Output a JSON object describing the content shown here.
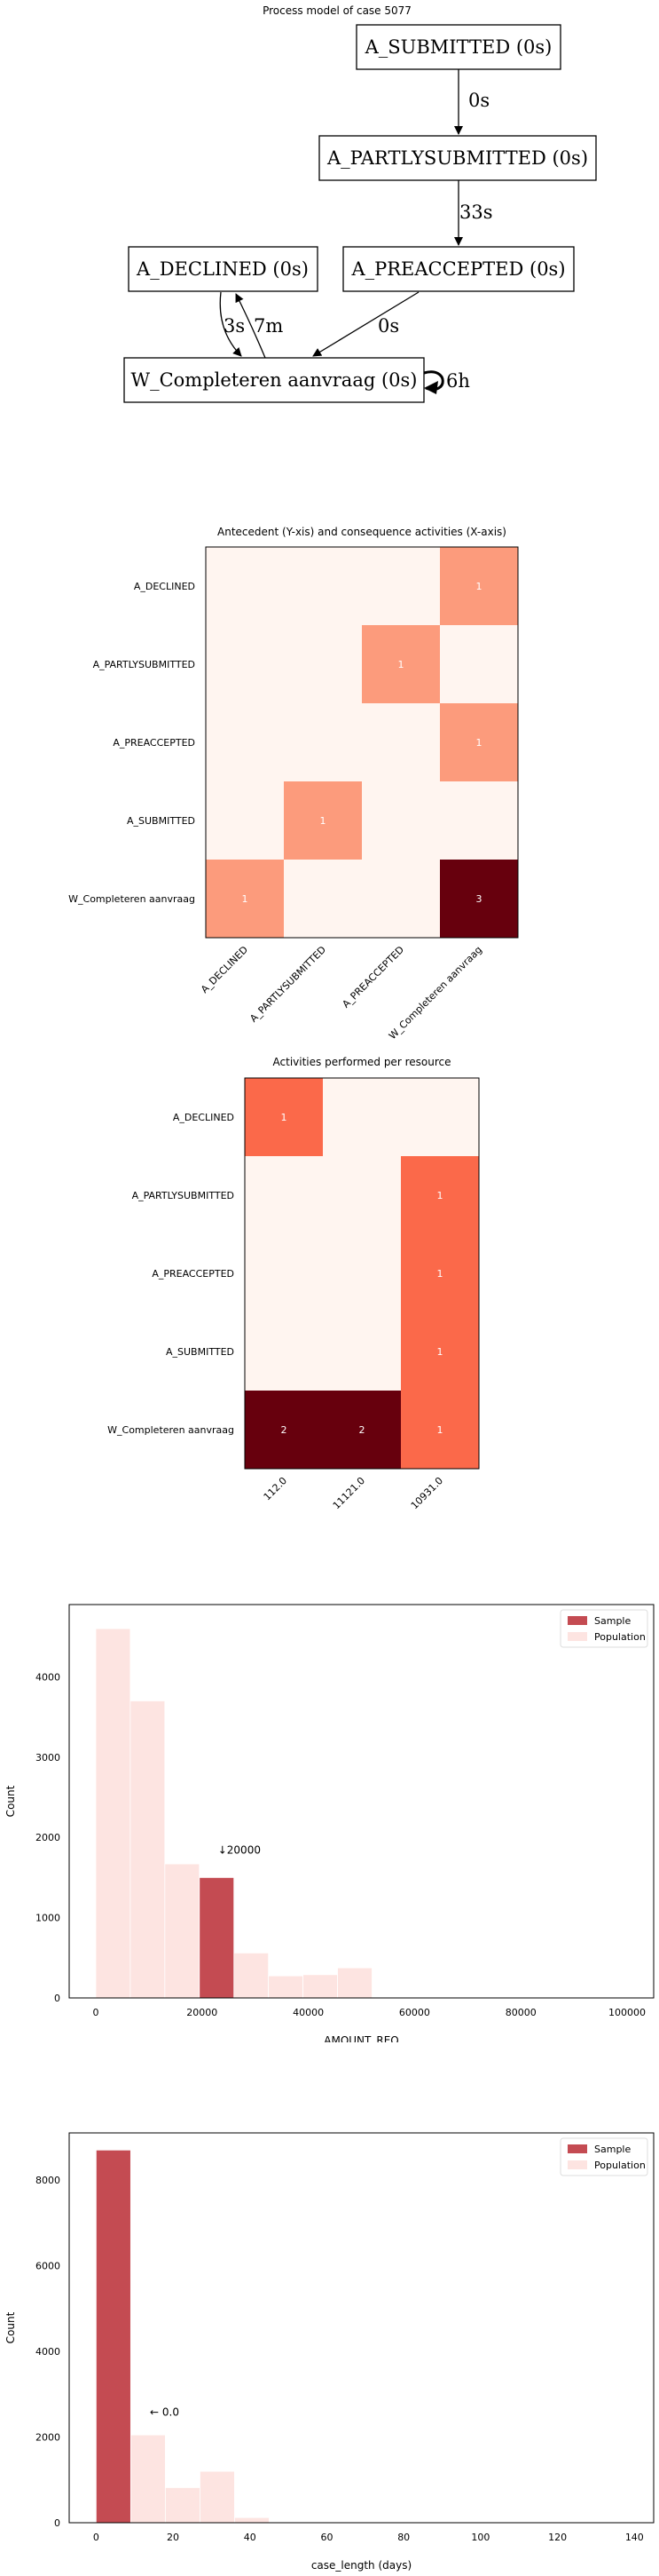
{
  "process_model": {
    "title": "Process model of case 5077",
    "nodes": {
      "submitted": "A_SUBMITTED (0s)",
      "partly": "A_PARTLYSUBMITTED (0s)",
      "declined": "A_DECLINED (0s)",
      "preaccepted": "A_PREACCEPTED (0s)",
      "completeren": "W_Completeren aanvraag (0s)"
    },
    "edges": {
      "submitted_partly": "0s",
      "partly_preaccepted": "33s",
      "declined_completeren": "3s",
      "completeren_declined": "7m",
      "preaccepted_completeren": "0s",
      "completeren_self": "6h"
    }
  },
  "chart_data": [
    {
      "type": "heatmap",
      "title": "Antecedent (Y-xis) and consequence activities (X-axis)",
      "rows": [
        "A_DECLINED",
        "A_PARTLYSUBMITTED",
        "A_PREACCEPTED",
        "A_SUBMITTED",
        "W_Completeren aanvraag"
      ],
      "columns": [
        "A_DECLINED",
        "A_PARTLYSUBMITTED",
        "A_PREACCEPTED",
        "W_Completeren aanvraag"
      ],
      "values": [
        [
          0,
          0,
          0,
          1
        ],
        [
          0,
          0,
          1,
          0
        ],
        [
          0,
          0,
          0,
          1
        ],
        [
          0,
          1,
          0,
          0
        ],
        [
          1,
          0,
          0,
          3
        ]
      ],
      "vmax": 3
    },
    {
      "type": "heatmap",
      "title": "Activities performed per resource",
      "rows": [
        "A_DECLINED",
        "A_PARTLYSUBMITTED",
        "A_PREACCEPTED",
        "A_SUBMITTED",
        "W_Completeren aanvraag"
      ],
      "columns": [
        "112.0",
        "11121.0",
        "10931.0"
      ],
      "values": [
        [
          1,
          0,
          0
        ],
        [
          0,
          0,
          1
        ],
        [
          0,
          0,
          1
        ],
        [
          0,
          0,
          1
        ],
        [
          2,
          2,
          1
        ]
      ],
      "vmax": 2
    },
    {
      "type": "bar",
      "xlabel": "AMOUNT_REQ",
      "ylabel": "Count",
      "xlim": [
        -5000,
        105000
      ],
      "ylim": [
        0,
        4900
      ],
      "xticks": [
        0,
        20000,
        40000,
        60000,
        80000,
        100000
      ],
      "yticks": [
        0,
        1000,
        2000,
        3000,
        4000
      ],
      "legend": [
        "Sample",
        "Population"
      ],
      "legend_position": "top-right",
      "annotation": "↓20000",
      "series": [
        {
          "name": "Population",
          "bins": [
            [
              0,
              6500,
              4600
            ],
            [
              6500,
              13000,
              3700
            ],
            [
              13000,
              19500,
              1670
            ],
            [
              19500,
              26000,
              1450
            ],
            [
              26000,
              32500,
              560
            ],
            [
              32500,
              39000,
              275
            ],
            [
              39000,
              45500,
              290
            ],
            [
              45500,
              52000,
              375
            ]
          ]
        },
        {
          "name": "Sample",
          "bins": [
            [
              19500,
              26000,
              1500
            ]
          ]
        }
      ]
    },
    {
      "type": "bar",
      "xlabel": "case_length (days)",
      "ylabel": "Count",
      "xlim": [
        -7,
        145
      ],
      "ylim": [
        0,
        9100
      ],
      "xticks": [
        0,
        20,
        40,
        60,
        80,
        100,
        120,
        140
      ],
      "yticks": [
        0,
        2000,
        4000,
        6000,
        8000
      ],
      "legend": [
        "Sample",
        "Population"
      ],
      "legend_position": "top-right",
      "annotation": "← 0.0",
      "series": [
        {
          "name": "Population",
          "bins": [
            [
              0,
              9,
              8300
            ],
            [
              9,
              18,
              2050
            ],
            [
              18,
              27,
              820
            ],
            [
              27,
              36,
              1200
            ],
            [
              36,
              45,
              120
            ]
          ]
        },
        {
          "name": "Sample",
          "bins": [
            [
              0,
              9,
              8700
            ]
          ]
        }
      ]
    }
  ],
  "colors": {
    "sample": "#c44b52",
    "population": "#fde4e1",
    "heat_low": "#fff5f0",
    "heat_mid": "#fc9b7c",
    "heat_mid2": "#fb694a",
    "heat_high": "#67000d"
  }
}
